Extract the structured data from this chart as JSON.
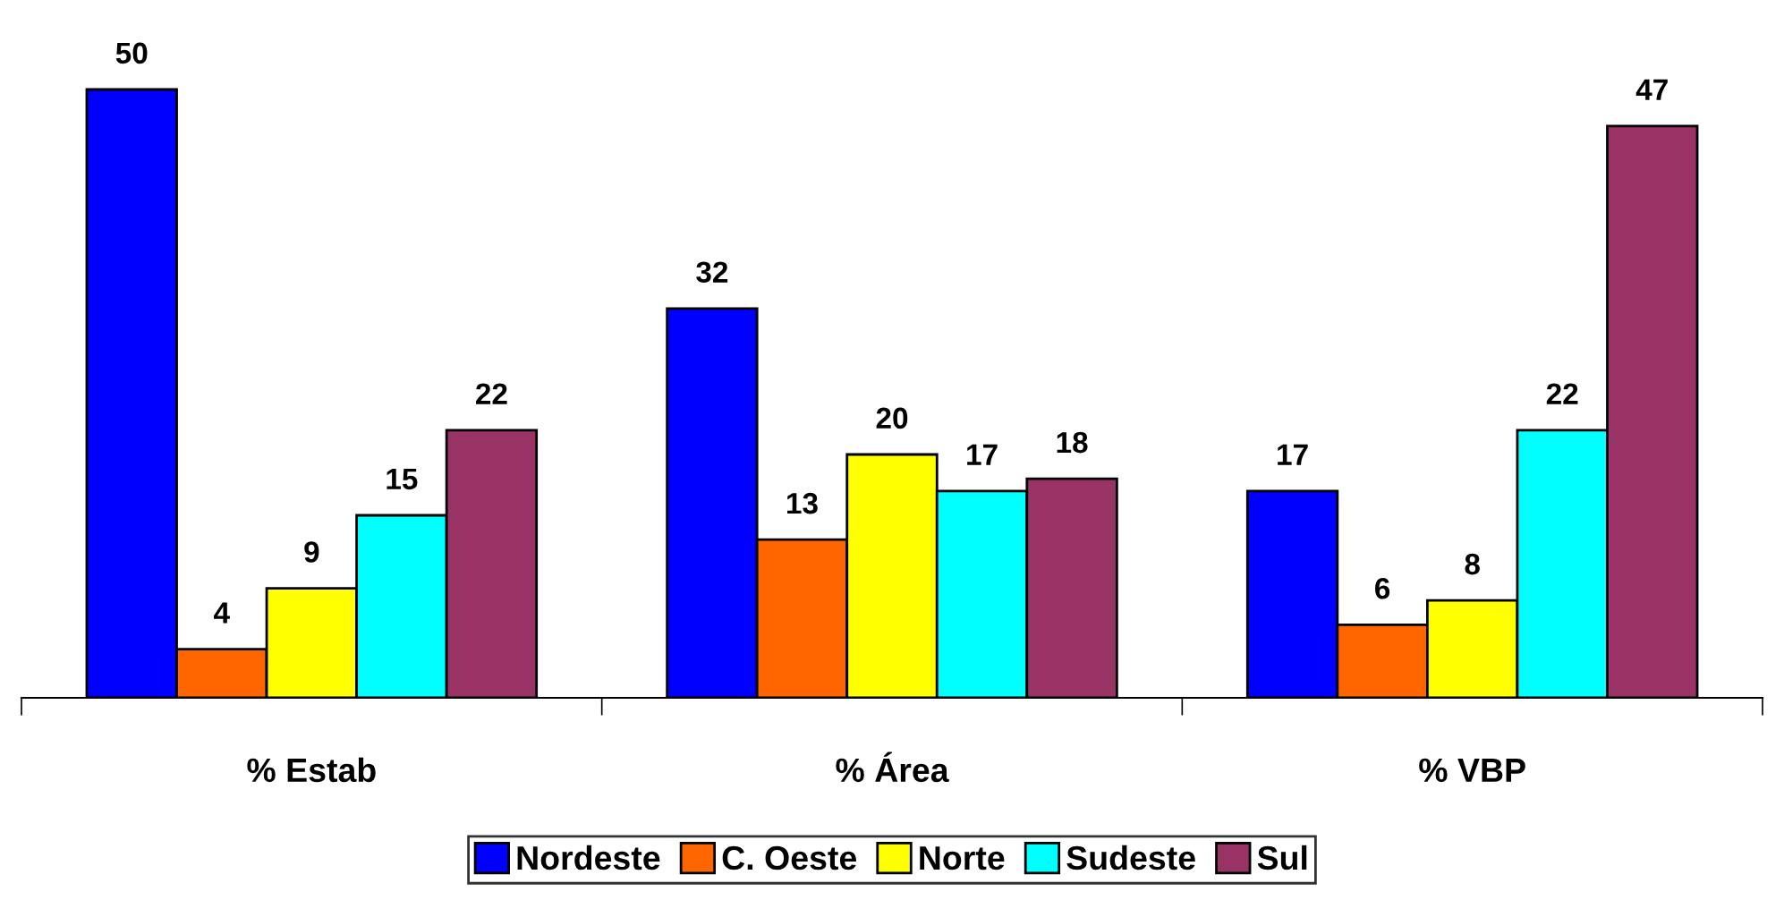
{
  "chart_data": {
    "type": "bar",
    "categories": [
      "% Estab",
      "% Área",
      "% VBP"
    ],
    "series": [
      {
        "name": "Nordeste",
        "color": "#0000ff",
        "values": [
          50,
          32,
          17
        ]
      },
      {
        "name": "C. Oeste",
        "color": "#ff6600",
        "values": [
          4,
          13,
          6
        ]
      },
      {
        "name": "Norte",
        "color": "#ffff00",
        "values": [
          9,
          20,
          8
        ]
      },
      {
        "name": "Sudeste",
        "color": "#00ffff",
        "values": [
          15,
          17,
          22
        ]
      },
      {
        "name": "Sul",
        "color": "#993366",
        "values": [
          22,
          18,
          47
        ]
      }
    ],
    "data_labels": true,
    "grid": false,
    "legend": "bottom",
    "tick_labels": "x"
  }
}
